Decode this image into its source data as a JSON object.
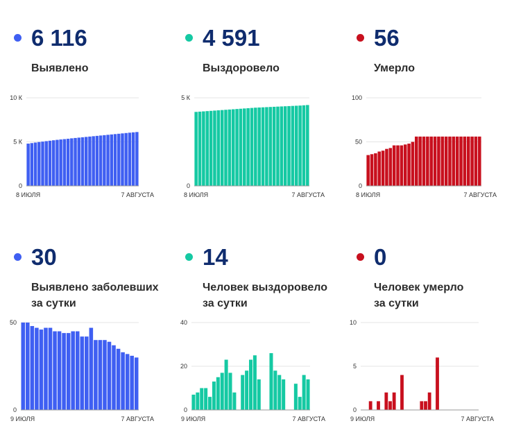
{
  "colors": {
    "blue": "#3f5ff2",
    "green": "#15c9a3",
    "red": "#c8101e",
    "number": "#0f2c6e",
    "grid": "#e4e4e4"
  },
  "panels": [
    {
      "id": "detected-total",
      "value": "6 116",
      "label_lines": [
        "Выявлено"
      ],
      "color": "blue"
    },
    {
      "id": "recovered-total",
      "value": "4 591",
      "label_lines": [
        "Выздоровело"
      ],
      "color": "green"
    },
    {
      "id": "died-total",
      "value": "56",
      "label_lines": [
        "Умерло"
      ],
      "color": "red"
    },
    {
      "id": "detected-daily",
      "value": "30",
      "label_lines": [
        "Выявлено заболевших",
        "за сутки"
      ],
      "color": "blue"
    },
    {
      "id": "recovered-daily",
      "value": "14",
      "label_lines": [
        "Человек выздоровело",
        "за сутки"
      ],
      "color": "green"
    },
    {
      "id": "died-daily",
      "value": "0",
      "label_lines": [
        "Человек умерло",
        "за сутки"
      ],
      "color": "red"
    }
  ],
  "chart_data": [
    {
      "type": "bar",
      "title": "Выявлено",
      "color": "blue",
      "x_start_label": "8 ИЮЛЯ",
      "x_end_label": "7 АВГУСТА",
      "ylim": [
        0,
        10000
      ],
      "yticks": [
        {
          "v": 0,
          "t": "0"
        },
        {
          "v": 5000,
          "t": "5 К"
        },
        {
          "v": 10000,
          "t": "10 К"
        }
      ],
      "values": [
        4800,
        4860,
        4920,
        4980,
        5030,
        5080,
        5130,
        5180,
        5230,
        5270,
        5310,
        5350,
        5400,
        5440,
        5480,
        5520,
        5560,
        5600,
        5640,
        5680,
        5720,
        5760,
        5800,
        5840,
        5880,
        5920,
        5960,
        6000,
        6040,
        6080,
        6116
      ]
    },
    {
      "type": "bar",
      "title": "Выздоровело",
      "color": "green",
      "x_start_label": "8 ИЮЛЯ",
      "x_end_label": "7 АВГУСТА",
      "ylim": [
        0,
        5000
      ],
      "yticks": [
        {
          "v": 0,
          "t": "0"
        },
        {
          "v": 5000,
          "t": "5 К"
        }
      ],
      "values": [
        4200,
        4215,
        4230,
        4245,
        4260,
        4275,
        4290,
        4305,
        4320,
        4335,
        4350,
        4365,
        4380,
        4395,
        4410,
        4425,
        4440,
        4450,
        4460,
        4470,
        4480,
        4490,
        4500,
        4510,
        4520,
        4530,
        4540,
        4550,
        4560,
        4575,
        4591
      ]
    },
    {
      "type": "bar",
      "title": "Умерло",
      "color": "red",
      "x_start_label": "8 ИЮЛЯ",
      "x_end_label": "7 АВГУСТА",
      "ylim": [
        0,
        100
      ],
      "yticks": [
        {
          "v": 0,
          "t": "0"
        },
        {
          "v": 50,
          "t": "50"
        },
        {
          "v": 100,
          "t": "100"
        }
      ],
      "values": [
        35,
        36,
        37,
        39,
        40,
        42,
        43,
        46,
        46,
        46,
        47,
        48,
        50,
        56,
        56,
        56,
        56,
        56,
        56,
        56,
        56,
        56,
        56,
        56,
        56,
        56,
        56,
        56,
        56,
        56,
        56
      ]
    },
    {
      "type": "bar",
      "title": "Выявлено заболевших за сутки",
      "color": "blue",
      "x_start_label": "9 ИЮЛЯ",
      "x_end_label": "7 АВГУСТА",
      "ylim": [
        0,
        50
      ],
      "yticks": [
        {
          "v": 0,
          "t": "0"
        },
        {
          "v": 50,
          "t": "50"
        }
      ],
      "values": [
        50,
        50,
        48,
        47,
        46,
        47,
        47,
        45,
        45,
        44,
        44,
        45,
        45,
        42,
        42,
        47,
        40,
        40,
        40,
        39,
        37,
        35,
        33,
        32,
        31,
        30
      ]
    },
    {
      "type": "bar",
      "title": "Человек выздоровело за сутки",
      "color": "green",
      "x_start_label": "9 ИЮЛЯ",
      "x_end_label": "7 АВГУСТА",
      "ylim": [
        0,
        40
      ],
      "yticks": [
        {
          "v": 0,
          "t": "0"
        },
        {
          "v": 20,
          "t": "20"
        },
        {
          "v": 40,
          "t": "40"
        }
      ],
      "values": [
        7,
        8,
        10,
        10,
        6,
        13,
        15,
        17,
        23,
        17,
        8,
        0,
        16,
        18,
        23,
        25,
        14,
        0,
        0,
        26,
        18,
        16,
        14,
        0,
        0,
        12,
        6,
        16,
        14
      ]
    },
    {
      "type": "bar",
      "title": "Человек умерло за сутки",
      "color": "red",
      "x_start_label": "9 ИЮЛЯ",
      "x_end_label": "7 АВГУСТА",
      "ylim": [
        0,
        10
      ],
      "yticks": [
        {
          "v": 0,
          "t": "0"
        },
        {
          "v": 5,
          "t": "5"
        },
        {
          "v": 10,
          "t": "10"
        }
      ],
      "values": [
        0,
        0,
        1,
        0,
        1,
        0,
        2,
        1,
        2,
        0,
        4,
        0,
        0,
        0,
        0,
        1,
        1,
        2,
        0,
        6,
        0,
        0,
        0,
        0,
        0,
        0,
        0,
        0,
        0,
        0
      ]
    }
  ]
}
